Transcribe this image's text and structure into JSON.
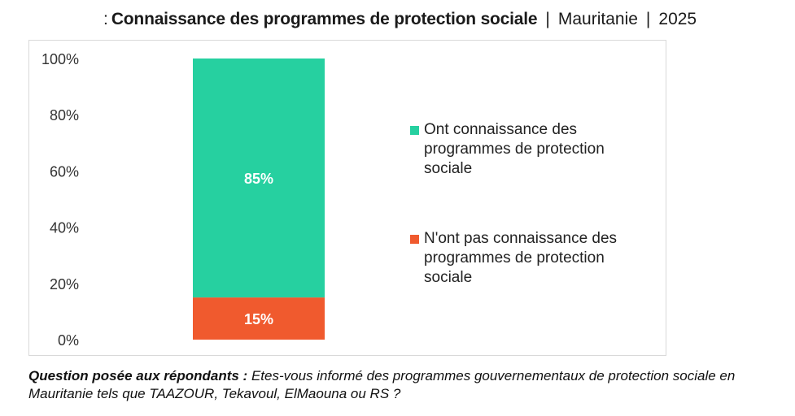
{
  "header": {
    "prefix": ":",
    "title": "Connaissance des programmes de protection sociale",
    "separator": "|",
    "country": "Mauritanie",
    "year": "2025"
  },
  "colors": {
    "aware": "#26d0a0",
    "not_aware": "#f05a2e"
  },
  "chart_data": {
    "type": "bar",
    "stacked": true,
    "percent": true,
    "categories": [
      ""
    ],
    "series": [
      {
        "name": "N'ont pas connaissance des programmes de protection sociale",
        "values": [
          15
        ],
        "label": "15%",
        "color": "#f05a2e"
      },
      {
        "name": "Ont connaissance des programmes de protection sociale",
        "values": [
          85
        ],
        "label": "85%",
        "color": "#26d0a0"
      }
    ],
    "ylim": [
      0,
      100
    ],
    "yticks": [
      "0%",
      "20%",
      "40%",
      "60%",
      "80%",
      "100%"
    ],
    "title": "",
    "xlabel": "",
    "ylabel": "",
    "grid": false,
    "legend": "right"
  },
  "legend": {
    "items": [
      {
        "label": "Ont connaissance des programmes de protection sociale",
        "color": "#26d0a0"
      },
      {
        "label": "N'ont pas connaissance des programmes de protection sociale",
        "color": "#f05a2e"
      }
    ]
  },
  "footer": {
    "question_label": "Question posée aux répondants :",
    "question_text": "Etes-vous informé des programmes gouvernementaux de protection sociale en Mauritanie tels que TAAZOUR, Tekavoul, ElMaouna ou RS ?"
  }
}
